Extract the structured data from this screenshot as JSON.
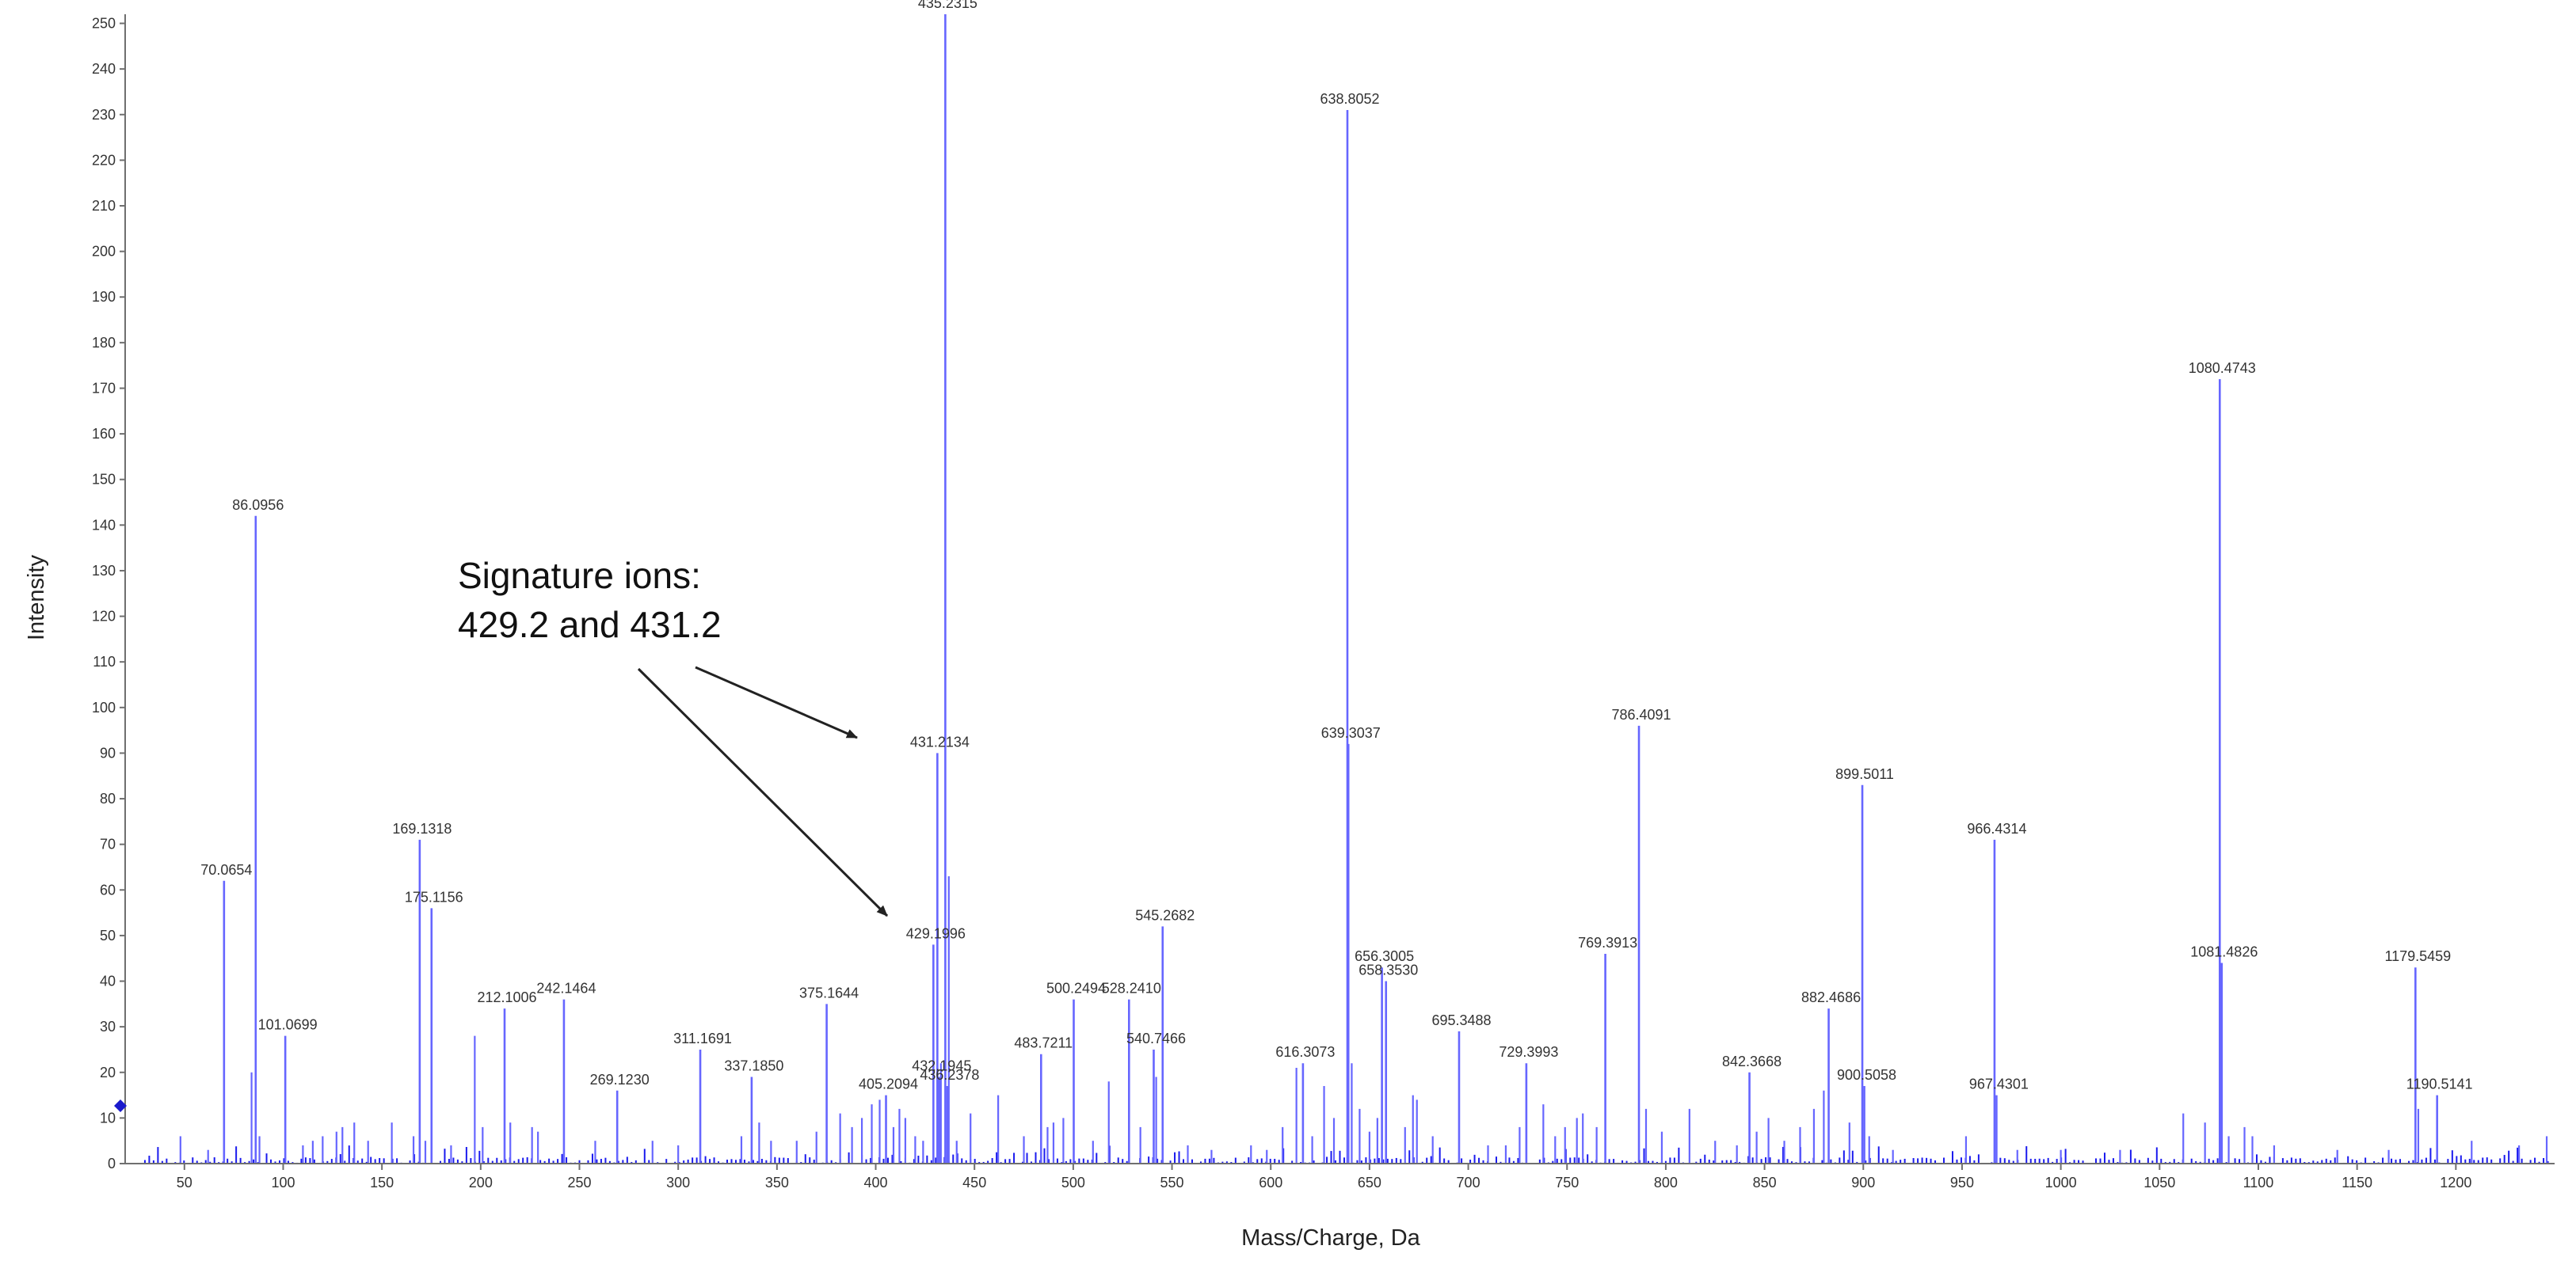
{
  "chart_data": {
    "type": "bar",
    "xlabel": "Mass/Charge, Da",
    "ylabel": "Intensity",
    "xlim": [
      20,
      1250
    ],
    "ylim": [
      0,
      252
    ],
    "xticks": [
      50,
      100,
      150,
      200,
      250,
      300,
      350,
      400,
      450,
      500,
      550,
      600,
      650,
      700,
      750,
      800,
      850,
      900,
      950,
      1000,
      1050,
      1100,
      1150,
      1200
    ],
    "yticks": [
      0,
      10,
      20,
      30,
      40,
      50,
      60,
      70,
      80,
      90,
      100,
      110,
      120,
      130,
      140,
      150,
      160,
      170,
      180,
      190,
      200,
      210,
      220,
      230,
      240,
      250
    ],
    "grid": false,
    "colors": {
      "peaks": "#6666ff",
      "baseline": "#1a1aee",
      "axis": "#6f6f6f"
    },
    "labeled_peaks": [
      {
        "mz": 70.0654,
        "intensity": 62,
        "label": "70.0654"
      },
      {
        "mz": 86.0956,
        "intensity": 142,
        "label": "86.0956"
      },
      {
        "mz": 101.0699,
        "intensity": 28,
        "label": "101.0699"
      },
      {
        "mz": 169.1318,
        "intensity": 71,
        "label": "169.1318"
      },
      {
        "mz": 175.1156,
        "intensity": 56,
        "label": "175.1156"
      },
      {
        "mz": 212.1006,
        "intensity": 34,
        "label": "212.1006"
      },
      {
        "mz": 242.1464,
        "intensity": 36,
        "label": "242.1464"
      },
      {
        "mz": 269.123,
        "intensity": 16,
        "label": "269.1230"
      },
      {
        "mz": 311.1691,
        "intensity": 25,
        "label": "311.1691"
      },
      {
        "mz": 337.185,
        "intensity": 19,
        "label": "337.1850"
      },
      {
        "mz": 375.1644,
        "intensity": 35,
        "label": "375.1644"
      },
      {
        "mz": 405.2094,
        "intensity": 15,
        "label": "405.2094"
      },
      {
        "mz": 429.1996,
        "intensity": 48,
        "label": "429.1996"
      },
      {
        "mz": 431.2134,
        "intensity": 90,
        "label": "431.2134"
      },
      {
        "mz": 432.1945,
        "intensity": 19,
        "label": "432.1945"
      },
      {
        "mz": 435.2315,
        "intensity": 252,
        "label": "435.2315"
      },
      {
        "mz": 436.2378,
        "intensity": 17,
        "label": "436.2378"
      },
      {
        "mz": 483.7211,
        "intensity": 24,
        "label": "483.7211"
      },
      {
        "mz": 500.2494,
        "intensity": 36,
        "label": "500.2494"
      },
      {
        "mz": 528.241,
        "intensity": 36,
        "label": "528.2410"
      },
      {
        "mz": 540.7466,
        "intensity": 25,
        "label": "540.7466"
      },
      {
        "mz": 545.2682,
        "intensity": 52,
        "label": "545.2682"
      },
      {
        "mz": 616.3073,
        "intensity": 22,
        "label": "616.3073"
      },
      {
        "mz": 638.8052,
        "intensity": 231,
        "label": "638.8052"
      },
      {
        "mz": 639.3037,
        "intensity": 92,
        "label": "639.3037"
      },
      {
        "mz": 656.3005,
        "intensity": 43,
        "label": "656.3005"
      },
      {
        "mz": 658.353,
        "intensity": 40,
        "label": "658.3530"
      },
      {
        "mz": 695.3488,
        "intensity": 29,
        "label": "695.3488"
      },
      {
        "mz": 729.3993,
        "intensity": 22,
        "label": "729.3993"
      },
      {
        "mz": 769.3913,
        "intensity": 46,
        "label": "769.3913"
      },
      {
        "mz": 786.4091,
        "intensity": 96,
        "label": "786.4091"
      },
      {
        "mz": 842.3668,
        "intensity": 20,
        "label": "842.3668"
      },
      {
        "mz": 882.4686,
        "intensity": 34,
        "label": "882.4686"
      },
      {
        "mz": 899.5011,
        "intensity": 83,
        "label": "899.5011"
      },
      {
        "mz": 900.5058,
        "intensity": 17,
        "label": "900.5058"
      },
      {
        "mz": 966.4314,
        "intensity": 71,
        "label": "966.4314"
      },
      {
        "mz": 967.4301,
        "intensity": 15,
        "label": "967.4301"
      },
      {
        "mz": 1080.4743,
        "intensity": 172,
        "label": "1080.4743"
      },
      {
        "mz": 1081.4826,
        "intensity": 44,
        "label": "1081.4826"
      },
      {
        "mz": 1179.5459,
        "intensity": 43,
        "label": "1179.5459"
      },
      {
        "mz": 1190.5141,
        "intensity": 15,
        "label": "1190.5141"
      }
    ],
    "minor_peaks": [
      {
        "mz": 48,
        "intensity": 6
      },
      {
        "mz": 62,
        "intensity": 3
      },
      {
        "mz": 84,
        "intensity": 20
      },
      {
        "mz": 88,
        "intensity": 6
      },
      {
        "mz": 110,
        "intensity": 4
      },
      {
        "mz": 115,
        "intensity": 5
      },
      {
        "mz": 120,
        "intensity": 6
      },
      {
        "mz": 127,
        "intensity": 7
      },
      {
        "mz": 130,
        "intensity": 8
      },
      {
        "mz": 136,
        "intensity": 9
      },
      {
        "mz": 143,
        "intensity": 5
      },
      {
        "mz": 155,
        "intensity": 9
      },
      {
        "mz": 166,
        "intensity": 6
      },
      {
        "mz": 172,
        "intensity": 5
      },
      {
        "mz": 185,
        "intensity": 4
      },
      {
        "mz": 197,
        "intensity": 28
      },
      {
        "mz": 201,
        "intensity": 8
      },
      {
        "mz": 215,
        "intensity": 9
      },
      {
        "mz": 226,
        "intensity": 8
      },
      {
        "mz": 229,
        "intensity": 7
      },
      {
        "mz": 258,
        "intensity": 5
      },
      {
        "mz": 287,
        "intensity": 5
      },
      {
        "mz": 300,
        "intensity": 4
      },
      {
        "mz": 332,
        "intensity": 6
      },
      {
        "mz": 341,
        "intensity": 9
      },
      {
        "mz": 347,
        "intensity": 5
      },
      {
        "mz": 360,
        "intensity": 5
      },
      {
        "mz": 370,
        "intensity": 7
      },
      {
        "mz": 382,
        "intensity": 11
      },
      {
        "mz": 388,
        "intensity": 8
      },
      {
        "mz": 393,
        "intensity": 10
      },
      {
        "mz": 398,
        "intensity": 13
      },
      {
        "mz": 402,
        "intensity": 14
      },
      {
        "mz": 409,
        "intensity": 8
      },
      {
        "mz": 412,
        "intensity": 12
      },
      {
        "mz": 415,
        "intensity": 10
      },
      {
        "mz": 420,
        "intensity": 6
      },
      {
        "mz": 424,
        "intensity": 5
      },
      {
        "mz": 433,
        "intensity": 22
      },
      {
        "mz": 437,
        "intensity": 63
      },
      {
        "mz": 441,
        "intensity": 5
      },
      {
        "mz": 448,
        "intensity": 11
      },
      {
        "mz": 462,
        "intensity": 15
      },
      {
        "mz": 475,
        "intensity": 6
      },
      {
        "mz": 487,
        "intensity": 8
      },
      {
        "mz": 490,
        "intensity": 9
      },
      {
        "mz": 495,
        "intensity": 10
      },
      {
        "mz": 510,
        "intensity": 5
      },
      {
        "mz": 518,
        "intensity": 18
      },
      {
        "mz": 534,
        "intensity": 8
      },
      {
        "mz": 542,
        "intensity": 19
      },
      {
        "mz": 558,
        "intensity": 4
      },
      {
        "mz": 570,
        "intensity": 3
      },
      {
        "mz": 590,
        "intensity": 4
      },
      {
        "mz": 598,
        "intensity": 3
      },
      {
        "mz": 606,
        "intensity": 8
      },
      {
        "mz": 613,
        "intensity": 21
      },
      {
        "mz": 621,
        "intensity": 6
      },
      {
        "mz": 627,
        "intensity": 17
      },
      {
        "mz": 632,
        "intensity": 10
      },
      {
        "mz": 641,
        "intensity": 22
      },
      {
        "mz": 645,
        "intensity": 12
      },
      {
        "mz": 650,
        "intensity": 7
      },
      {
        "mz": 654,
        "intensity": 10
      },
      {
        "mz": 668,
        "intensity": 8
      },
      {
        "mz": 672,
        "intensity": 15
      },
      {
        "mz": 674,
        "intensity": 14
      },
      {
        "mz": 682,
        "intensity": 6
      },
      {
        "mz": 710,
        "intensity": 4
      },
      {
        "mz": 719,
        "intensity": 4
      },
      {
        "mz": 726,
        "intensity": 8
      },
      {
        "mz": 738,
        "intensity": 13
      },
      {
        "mz": 744,
        "intensity": 6
      },
      {
        "mz": 749,
        "intensity": 8
      },
      {
        "mz": 755,
        "intensity": 10
      },
      {
        "mz": 758,
        "intensity": 11
      },
      {
        "mz": 765,
        "intensity": 8
      },
      {
        "mz": 790,
        "intensity": 12
      },
      {
        "mz": 798,
        "intensity": 7
      },
      {
        "mz": 812,
        "intensity": 12
      },
      {
        "mz": 825,
        "intensity": 5
      },
      {
        "mz": 836,
        "intensity": 4
      },
      {
        "mz": 846,
        "intensity": 7
      },
      {
        "mz": 852,
        "intensity": 10
      },
      {
        "mz": 860,
        "intensity": 5
      },
      {
        "mz": 868,
        "intensity": 8
      },
      {
        "mz": 875,
        "intensity": 12
      },
      {
        "mz": 880,
        "intensity": 16
      },
      {
        "mz": 893,
        "intensity": 9
      },
      {
        "mz": 903,
        "intensity": 6
      },
      {
        "mz": 915,
        "intensity": 3
      },
      {
        "mz": 952,
        "intensity": 6
      },
      {
        "mz": 978,
        "intensity": 3
      },
      {
        "mz": 1000,
        "intensity": 3
      },
      {
        "mz": 1030,
        "intensity": 3
      },
      {
        "mz": 1062,
        "intensity": 11
      },
      {
        "mz": 1073,
        "intensity": 9
      },
      {
        "mz": 1085,
        "intensity": 6
      },
      {
        "mz": 1093,
        "intensity": 8
      },
      {
        "mz": 1097,
        "intensity": 6
      },
      {
        "mz": 1108,
        "intensity": 4
      },
      {
        "mz": 1140,
        "intensity": 3
      },
      {
        "mz": 1166,
        "intensity": 3
      },
      {
        "mz": 1181,
        "intensity": 12
      },
      {
        "mz": 1208,
        "intensity": 5
      },
      {
        "mz": 1232,
        "intensity": 4
      },
      {
        "mz": 1246,
        "intensity": 6
      }
    ],
    "annotations": [
      {
        "text_lines": [
          "Signature ions:",
          "429.2 and 431.2"
        ],
        "arrows_to": [
          "431.2134",
          "429.1996"
        ]
      }
    ]
  }
}
